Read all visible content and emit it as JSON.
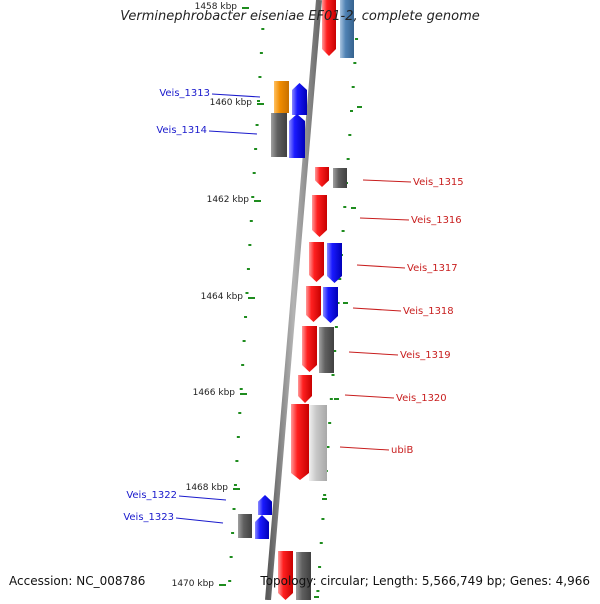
{
  "title": "Verminephrobacter eiseniae EF01-2, complete genome",
  "footer": {
    "accession": "Accession: NC_008786",
    "summary": "Topology: circular; Length: 5,566,749 bp; Genes: 4,966"
  },
  "scale": {
    "ticks": [
      {
        "label": "1458 kbp"
      },
      {
        "label": "1460 kbp"
      },
      {
        "label": "1462 kbp"
      },
      {
        "label": "1464 kbp"
      },
      {
        "label": "1466 kbp"
      },
      {
        "label": "1468 kbp"
      },
      {
        "label": "1470 kbp"
      }
    ]
  },
  "genes_left": [
    {
      "label": "Veis_1313"
    },
    {
      "label": "Veis_1314"
    },
    {
      "label": "Veis_1322"
    },
    {
      "label": "Veis_1323"
    }
  ],
  "genes_right": [
    {
      "label": "Veis_1315"
    },
    {
      "label": "Veis_1316"
    },
    {
      "label": "Veis_1317"
    },
    {
      "label": "Veis_1318"
    },
    {
      "label": "Veis_1319"
    },
    {
      "label": "Veis_1320"
    },
    {
      "label": "ubiB"
    }
  ],
  "colors": {
    "backbone": "#8c8c8c",
    "tick_green": "#1e8c1e",
    "forward_gene": "#ee1111",
    "reverse_gene": "#1111ee",
    "orange_gene": "#f08c00",
    "gray_gene": "#606060",
    "light_gray_gene": "#c8c8c8",
    "steel_blue_gene": "#4f82b4",
    "label_blue": "#1a1acc",
    "label_red": "#c81e1e"
  }
}
